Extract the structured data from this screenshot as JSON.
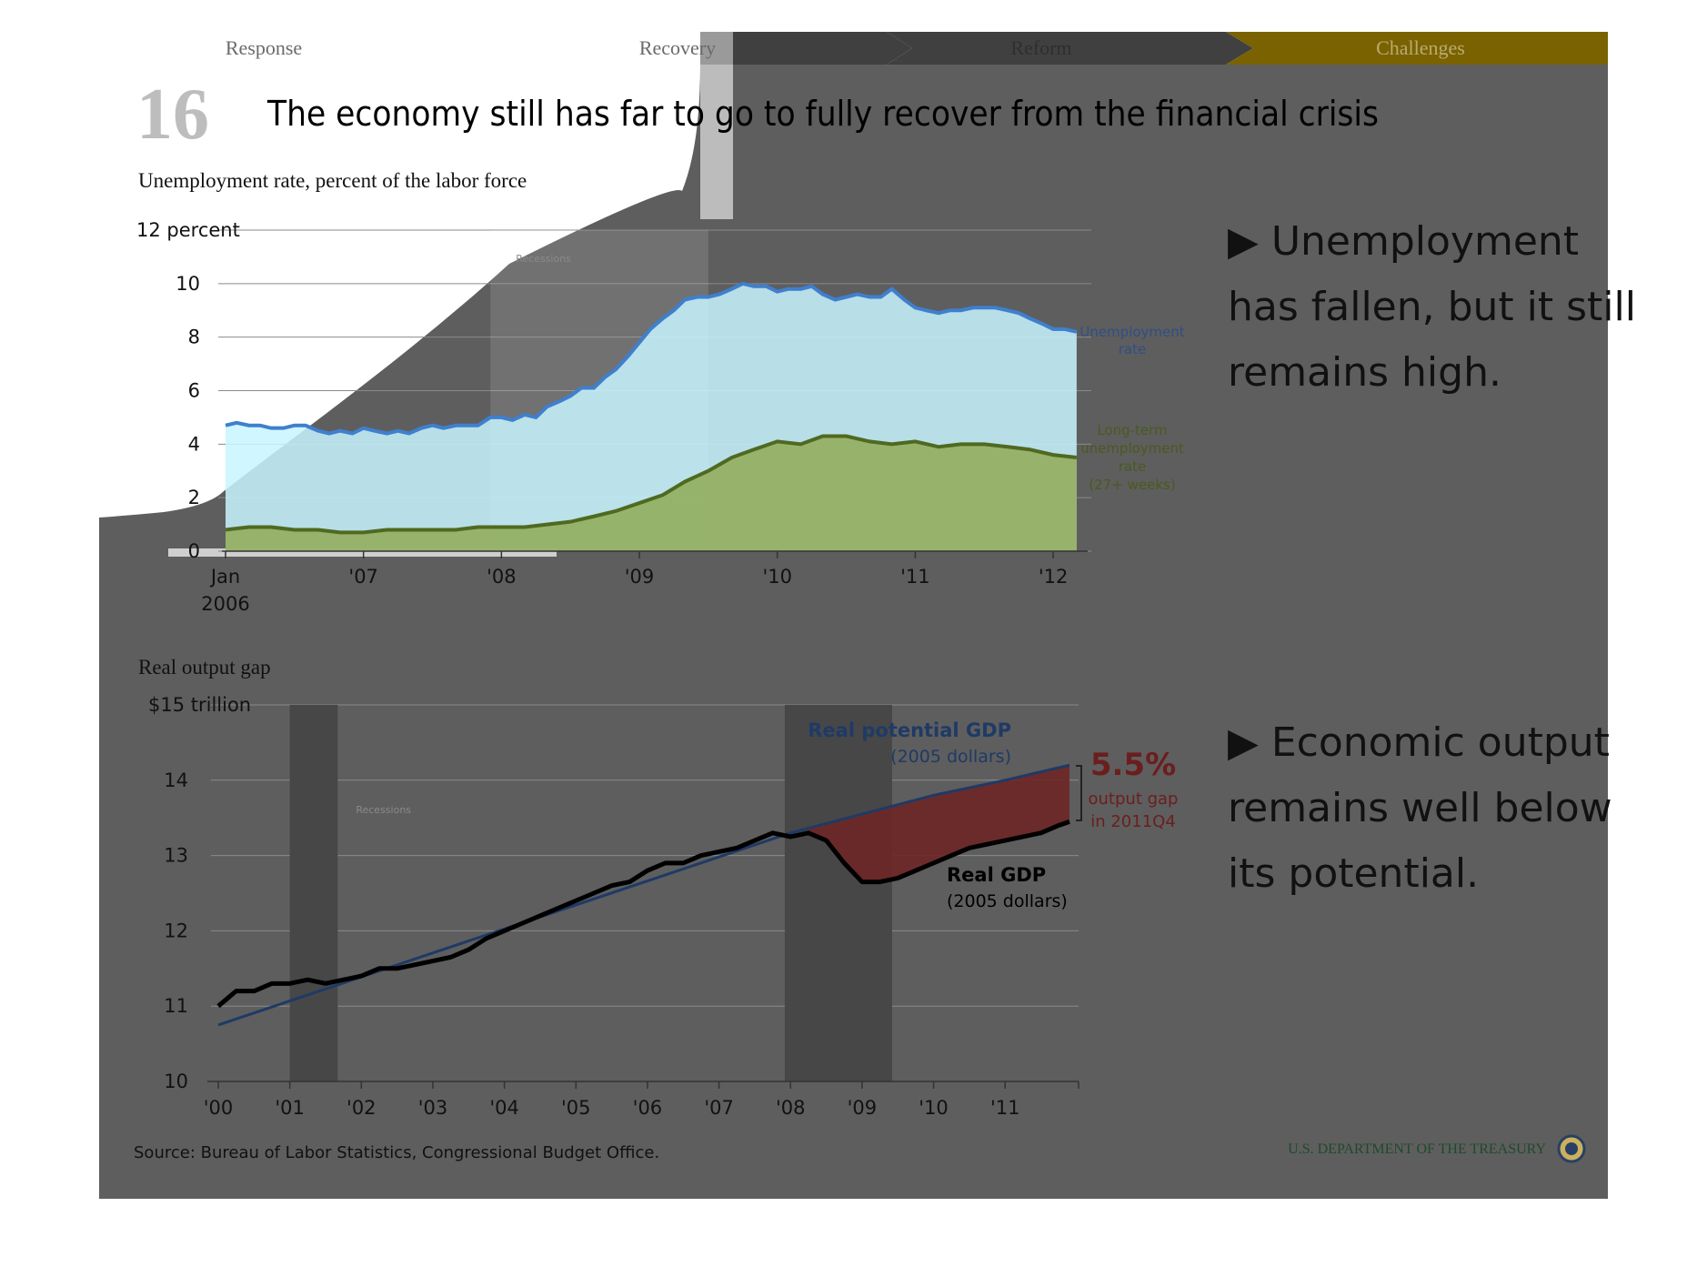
{
  "nav": {
    "tabs": [
      {
        "label": "Response"
      },
      {
        "label": "Recovery"
      },
      {
        "label": "Reform"
      },
      {
        "label": "Challenges"
      }
    ],
    "active_color": "#7a6200"
  },
  "slide": {
    "number": "16",
    "title": "The economy still has far to go to fully recover from the financial crisis"
  },
  "bullets": [
    {
      "lines": [
        "▶ Unemployment",
        "has fallen, but it still",
        "remains high."
      ]
    },
    {
      "lines": [
        "▶ Economic output",
        "remains well below",
        "its potential."
      ]
    }
  ],
  "footer": {
    "source": "Source: Bureau of Labor Statistics, Congressional Budget Office.",
    "agency": "U.S. DEPARTMENT OF THE TREASURY",
    "seal_icon": "treasury-seal-icon"
  },
  "colors": {
    "dim": "#5e5e5e",
    "unemployment_line": "#3f7fce",
    "unemployment_fill": "#c8f4ff",
    "longterm_line": "#4f6a20",
    "longterm_fill": "#8faa55",
    "gdp": "#000000",
    "potential": "#1f3a66",
    "gap_fill": "#6e2626",
    "gap_text": "#6b1e1e"
  },
  "chart_data": [
    {
      "type": "area",
      "title": "Unemployment rate, percent of the labor force",
      "ylabel": "",
      "yunit_label": "12 percent",
      "ylim": [
        0,
        12
      ],
      "yticks": [
        0,
        2,
        4,
        6,
        8,
        10,
        12
      ],
      "ytick_labels": [
        "0",
        "2",
        "4",
        "6",
        "8",
        "10",
        "12 percent"
      ],
      "xlim": [
        2006.0,
        2012.25
      ],
      "xticks": [
        2006,
        2007,
        2008,
        2009,
        2010,
        2011,
        2012
      ],
      "xtick_labels": [
        "Jan 2006",
        "'07",
        "'08",
        "'09",
        "'10",
        "'11",
        "'12"
      ],
      "recessions": [
        [
          2007.92,
          2009.5
        ]
      ],
      "recession_label": "Recessions",
      "series": [
        {
          "name": "Unemployment rate",
          "points": [
            [
              2006.0,
              4.7
            ],
            [
              2006.08,
              4.8
            ],
            [
              2006.17,
              4.7
            ],
            [
              2006.25,
              4.7
            ],
            [
              2006.33,
              4.6
            ],
            [
              2006.42,
              4.6
            ],
            [
              2006.5,
              4.7
            ],
            [
              2006.58,
              4.7
            ],
            [
              2006.67,
              4.5
            ],
            [
              2006.75,
              4.4
            ],
            [
              2006.83,
              4.5
            ],
            [
              2006.92,
              4.4
            ],
            [
              2007.0,
              4.6
            ],
            [
              2007.08,
              4.5
            ],
            [
              2007.17,
              4.4
            ],
            [
              2007.25,
              4.5
            ],
            [
              2007.33,
              4.4
            ],
            [
              2007.42,
              4.6
            ],
            [
              2007.5,
              4.7
            ],
            [
              2007.58,
              4.6
            ],
            [
              2007.67,
              4.7
            ],
            [
              2007.75,
              4.7
            ],
            [
              2007.83,
              4.7
            ],
            [
              2007.92,
              5.0
            ],
            [
              2008.0,
              5.0
            ],
            [
              2008.08,
              4.9
            ],
            [
              2008.17,
              5.1
            ],
            [
              2008.25,
              5.0
            ],
            [
              2008.33,
              5.4
            ],
            [
              2008.42,
              5.6
            ],
            [
              2008.5,
              5.8
            ],
            [
              2008.58,
              6.1
            ],
            [
              2008.67,
              6.1
            ],
            [
              2008.75,
              6.5
            ],
            [
              2008.83,
              6.8
            ],
            [
              2008.92,
              7.3
            ],
            [
              2009.0,
              7.8
            ],
            [
              2009.08,
              8.3
            ],
            [
              2009.17,
              8.7
            ],
            [
              2009.25,
              9.0
            ],
            [
              2009.33,
              9.4
            ],
            [
              2009.42,
              9.5
            ],
            [
              2009.5,
              9.5
            ],
            [
              2009.58,
              9.6
            ],
            [
              2009.67,
              9.8
            ],
            [
              2009.75,
              10.0
            ],
            [
              2009.83,
              9.9
            ],
            [
              2009.92,
              9.9
            ],
            [
              2010.0,
              9.7
            ],
            [
              2010.08,
              9.8
            ],
            [
              2010.17,
              9.8
            ],
            [
              2010.25,
              9.9
            ],
            [
              2010.33,
              9.6
            ],
            [
              2010.42,
              9.4
            ],
            [
              2010.5,
              9.5
            ],
            [
              2010.58,
              9.6
            ],
            [
              2010.67,
              9.5
            ],
            [
              2010.75,
              9.5
            ],
            [
              2010.83,
              9.8
            ],
            [
              2010.92,
              9.4
            ],
            [
              2011.0,
              9.1
            ],
            [
              2011.08,
              9.0
            ],
            [
              2011.17,
              8.9
            ],
            [
              2011.25,
              9.0
            ],
            [
              2011.33,
              9.0
            ],
            [
              2011.42,
              9.1
            ],
            [
              2011.5,
              9.1
            ],
            [
              2011.58,
              9.1
            ],
            [
              2011.67,
              9.0
            ],
            [
              2011.75,
              8.9
            ],
            [
              2011.83,
              8.7
            ],
            [
              2011.92,
              8.5
            ],
            [
              2012.0,
              8.3
            ],
            [
              2012.08,
              8.3
            ],
            [
              2012.17,
              8.2
            ]
          ]
        },
        {
          "name": "Long-term unemployment rate (27+ weeks)",
          "points": [
            [
              2006.0,
              0.8
            ],
            [
              2006.17,
              0.9
            ],
            [
              2006.33,
              0.9
            ],
            [
              2006.5,
              0.8
            ],
            [
              2006.67,
              0.8
            ],
            [
              2006.83,
              0.7
            ],
            [
              2007.0,
              0.7
            ],
            [
              2007.17,
              0.8
            ],
            [
              2007.33,
              0.8
            ],
            [
              2007.5,
              0.8
            ],
            [
              2007.67,
              0.8
            ],
            [
              2007.83,
              0.9
            ],
            [
              2008.0,
              0.9
            ],
            [
              2008.17,
              0.9
            ],
            [
              2008.33,
              1.0
            ],
            [
              2008.5,
              1.1
            ],
            [
              2008.67,
              1.3
            ],
            [
              2008.83,
              1.5
            ],
            [
              2009.0,
              1.8
            ],
            [
              2009.17,
              2.1
            ],
            [
              2009.33,
              2.6
            ],
            [
              2009.5,
              3.0
            ],
            [
              2009.67,
              3.5
            ],
            [
              2009.83,
              3.8
            ],
            [
              2010.0,
              4.1
            ],
            [
              2010.17,
              4.0
            ],
            [
              2010.33,
              4.3
            ],
            [
              2010.5,
              4.3
            ],
            [
              2010.67,
              4.1
            ],
            [
              2010.83,
              4.0
            ],
            [
              2011.0,
              4.1
            ],
            [
              2011.17,
              3.9
            ],
            [
              2011.33,
              4.0
            ],
            [
              2011.5,
              4.0
            ],
            [
              2011.67,
              3.9
            ],
            [
              2011.83,
              3.8
            ],
            [
              2012.0,
              3.6
            ],
            [
              2012.17,
              3.5
            ]
          ]
        }
      ],
      "labels": {
        "unemployment": [
          "Unemployment",
          "rate"
        ],
        "longterm": [
          "Long-term",
          "unemployment",
          "rate",
          "(27+ weeks)"
        ]
      }
    },
    {
      "type": "line",
      "title": "Real output gap",
      "yunit_label": "$15 trillion",
      "ylim": [
        10,
        15
      ],
      "yticks": [
        10,
        11,
        12,
        13,
        14,
        15
      ],
      "ytick_labels": [
        "10",
        "11",
        "12",
        "13",
        "14",
        "$15 trillion"
      ],
      "xlim": [
        2000.0,
        2011.9
      ],
      "xticks": [
        2000,
        2001,
        2002,
        2003,
        2004,
        2005,
        2006,
        2007,
        2008,
        2009,
        2010,
        2011
      ],
      "xtick_labels": [
        "'00",
        "'01",
        "'02",
        "'03",
        "'04",
        "'05",
        "'06",
        "'07",
        "'08",
        "'09",
        "'10",
        "'11"
      ],
      "recessions": [
        [
          2001.0,
          2001.67
        ],
        [
          2007.92,
          2009.42
        ]
      ],
      "recession_label": "Recessions",
      "series": [
        {
          "name": "Real GDP (2005 dollars)",
          "points": [
            [
              2000.0,
              11.0
            ],
            [
              2000.25,
              11.2
            ],
            [
              2000.5,
              11.2
            ],
            [
              2000.75,
              11.3
            ],
            [
              2001.0,
              11.3
            ],
            [
              2001.25,
              11.35
            ],
            [
              2001.5,
              11.3
            ],
            [
              2001.75,
              11.35
            ],
            [
              2002.0,
              11.4
            ],
            [
              2002.25,
              11.5
            ],
            [
              2002.5,
              11.5
            ],
            [
              2002.75,
              11.55
            ],
            [
              2003.0,
              11.6
            ],
            [
              2003.25,
              11.65
            ],
            [
              2003.5,
              11.75
            ],
            [
              2003.75,
              11.9
            ],
            [
              2004.0,
              12.0
            ],
            [
              2004.25,
              12.1
            ],
            [
              2004.5,
              12.2
            ],
            [
              2004.75,
              12.3
            ],
            [
              2005.0,
              12.4
            ],
            [
              2005.25,
              12.5
            ],
            [
              2005.5,
              12.6
            ],
            [
              2005.75,
              12.65
            ],
            [
              2006.0,
              12.8
            ],
            [
              2006.25,
              12.9
            ],
            [
              2006.5,
              12.9
            ],
            [
              2006.75,
              13.0
            ],
            [
              2007.0,
              13.05
            ],
            [
              2007.25,
              13.1
            ],
            [
              2007.5,
              13.2
            ],
            [
              2007.75,
              13.3
            ],
            [
              2008.0,
              13.25
            ],
            [
              2008.25,
              13.3
            ],
            [
              2008.5,
              13.2
            ],
            [
              2008.75,
              12.9
            ],
            [
              2009.0,
              12.65
            ],
            [
              2009.25,
              12.65
            ],
            [
              2009.5,
              12.7
            ],
            [
              2009.75,
              12.8
            ],
            [
              2010.0,
              12.9
            ],
            [
              2010.25,
              13.0
            ],
            [
              2010.5,
              13.1
            ],
            [
              2010.75,
              13.15
            ],
            [
              2011.0,
              13.2
            ],
            [
              2011.25,
              13.25
            ],
            [
              2011.5,
              13.3
            ],
            [
              2011.75,
              13.4
            ],
            [
              2011.9,
              13.45
            ]
          ]
        },
        {
          "name": "Real potential GDP (2005 dollars)",
          "points": [
            [
              2000.0,
              10.75
            ],
            [
              2008.0,
              13.3
            ],
            [
              2009.0,
              13.55
            ],
            [
              2010.0,
              13.8
            ],
            [
              2011.0,
              14.0
            ],
            [
              2011.9,
              14.2
            ]
          ]
        }
      ],
      "labels": {
        "potential_title": "Real potential GDP",
        "potential_sub": "(2005 dollars)",
        "gdp_title": "Real GDP",
        "gdp_sub": "(2005 dollars)",
        "gap_pct": "5.5%",
        "gap_line1": "output gap",
        "gap_line2": "in 2011Q4"
      }
    }
  ]
}
